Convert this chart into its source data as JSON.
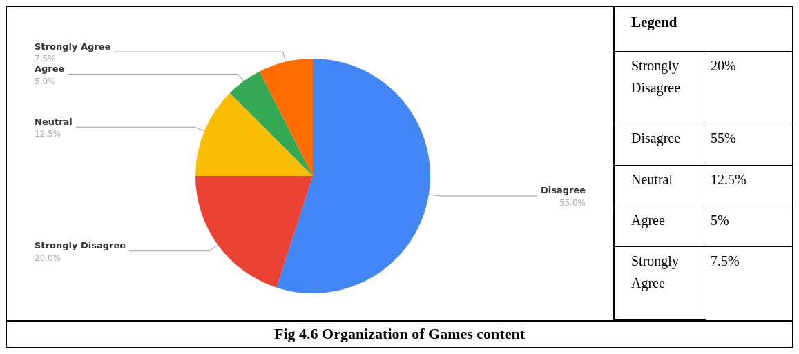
{
  "chart_data": {
    "type": "pie",
    "title": "Fig 4.6 Organization of Games content",
    "legend_title": "Legend",
    "categories": [
      "Disagree",
      "Strongly Disagree",
      "Neutral",
      "Agree",
      "Strongly Agree"
    ],
    "values": [
      55,
      20,
      12.5,
      5,
      7.5
    ],
    "value_labels": [
      "55.0%",
      "20.0%",
      "12.5%",
      "5.0%",
      "7.5%"
    ],
    "colors": [
      "#4285f4",
      "#ea4335",
      "#fbbc04",
      "#34a853",
      "#ff6d01"
    ],
    "annotations": [
      "Strongly Disagree",
      "20%",
      "Disagree",
      "55%",
      "Neutral",
      "12.5%",
      "Agree",
      "5%",
      "Strongly Agree",
      "7.5%"
    ]
  }
}
